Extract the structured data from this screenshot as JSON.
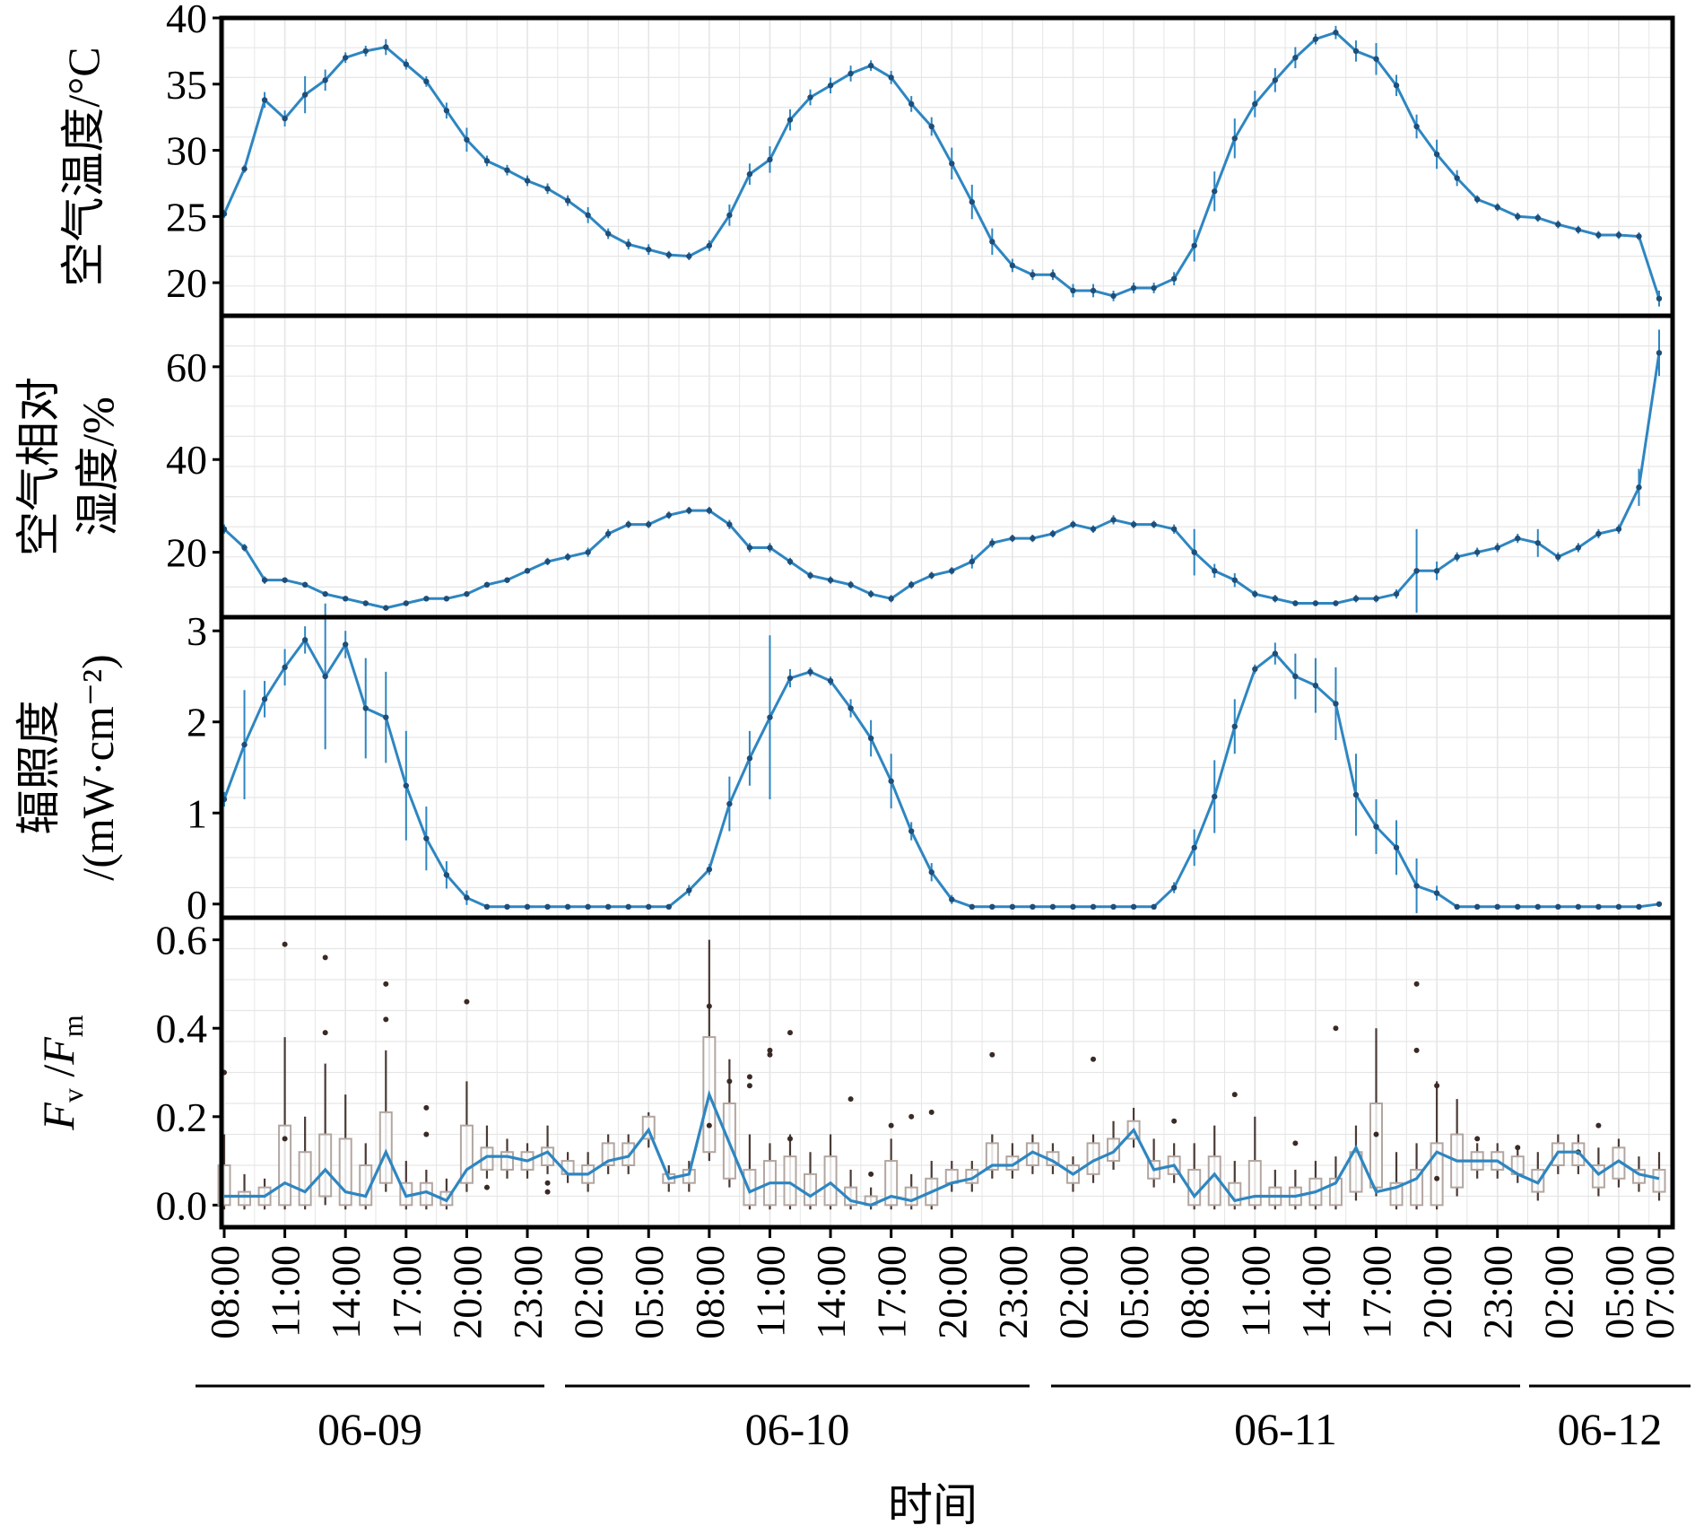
{
  "x_label": "时间",
  "day_groups": [
    "06-09",
    "06-10",
    "06-11",
    "06-12"
  ],
  "x_ticks": [
    "08:00",
    "11:00",
    "14:00",
    "17:00",
    "20:00",
    "23:00",
    "02:00",
    "05:00",
    "08:00",
    "11:00",
    "14:00",
    "17:00",
    "20:00",
    "23:00",
    "02:00",
    "05:00",
    "08:00",
    "11:00",
    "14:00",
    "17:00",
    "20:00",
    "23:00",
    "02:00",
    "05:00",
    "07:00"
  ],
  "colors": {
    "line": "#2e86c1",
    "box_edge": "#b3a6a0",
    "whisker": "#4a3a35",
    "grid": "#e6e6e6",
    "frame": "#000000"
  },
  "chart_data": [
    {
      "type": "line",
      "ylabel": [
        "空气温度/°C"
      ],
      "ylim": [
        17.5,
        40
      ],
      "yticks": [
        "20",
        "25",
        "30",
        "35",
        "40"
      ],
      "x_range_hours": [
        0,
        71
      ],
      "series": [
        {
          "values": [
            25.2,
            28.6,
            33.8,
            32.4,
            34.2,
            35.3,
            37.0,
            37.5,
            37.8,
            36.5,
            35.2,
            33.0,
            30.8,
            29.2,
            28.5,
            27.7,
            27.1,
            26.2,
            25.1,
            23.7,
            22.9,
            22.5,
            22.1,
            22.0,
            22.8,
            25.1,
            28.2,
            29.3,
            32.3,
            34.0,
            34.9,
            35.8,
            36.4,
            35.5,
            33.5,
            31.8,
            29.0,
            26.1,
            23.1,
            21.3,
            20.6,
            20.6,
            19.4,
            19.4,
            19.0,
            19.6,
            19.6,
            20.3,
            22.8,
            26.9,
            30.9,
            33.5,
            35.3,
            37.0,
            38.4,
            38.9,
            37.5,
            36.9,
            34.9,
            31.8,
            29.7,
            27.9,
            26.3,
            25.7,
            25.0,
            24.9,
            24.4,
            24.0,
            23.6,
            23.6,
            23.5,
            18.8
          ],
          "err": [
            0.3,
            0.3,
            0.6,
            0.6,
            1.4,
            0.8,
            0.4,
            0.4,
            0.6,
            0.4,
            0.4,
            0.6,
            0.9,
            0.4,
            0.4,
            0.4,
            0.4,
            0.4,
            0.6,
            0.4,
            0.4,
            0.4,
            0.3,
            0.3,
            0.4,
            0.8,
            0.8,
            1.0,
            0.8,
            0.6,
            0.6,
            0.6,
            0.4,
            0.5,
            0.6,
            0.7,
            1.2,
            1.3,
            1.0,
            0.5,
            0.4,
            0.4,
            0.5,
            0.5,
            0.4,
            0.4,
            0.4,
            0.5,
            1.2,
            1.5,
            1.5,
            1.0,
            0.9,
            0.8,
            0.4,
            0.5,
            0.8,
            1.2,
            0.8,
            0.9,
            1.1,
            0.6,
            0.3,
            0.3,
            0.3,
            0.3,
            0.3,
            0.3,
            0.3,
            0.3,
            0.3,
            0.6
          ]
        }
      ]
    },
    {
      "type": "line",
      "ylabel": [
        "空气相对",
        "湿度/%"
      ],
      "ylim": [
        6,
        71
      ],
      "yticks": [
        "20",
        "40",
        "60"
      ],
      "x_range_hours": [
        0,
        71
      ],
      "series": [
        {
          "values": [
            25.0,
            21.0,
            14.0,
            14.0,
            13.0,
            11.0,
            10.0,
            9.0,
            8.0,
            9.0,
            10.0,
            10.0,
            11.0,
            13.0,
            14.0,
            16.0,
            18.0,
            19.0,
            20.0,
            24.0,
            26.0,
            26.0,
            28.0,
            29.0,
            29.0,
            26.0,
            21.0,
            21.0,
            18.0,
            15.0,
            14.0,
            13.0,
            11.0,
            10.0,
            13.0,
            15.0,
            16.0,
            18.0,
            22.0,
            23.0,
            23.0,
            24.0,
            26.0,
            25.0,
            27.0,
            26.0,
            26.0,
            25.0,
            20.0,
            16.0,
            14.0,
            11.0,
            10.0,
            9.0,
            9.0,
            9.0,
            10.0,
            10.0,
            11.0,
            16.0,
            16.0,
            19.0,
            20.0,
            21.0,
            23.0,
            22.0,
            19.0,
            21.0,
            24.0,
            25.0,
            34.0,
            63.0
          ],
          "err": [
            1.0,
            0.8,
            0.8,
            0.6,
            0.6,
            0.5,
            0.5,
            0.5,
            0.6,
            0.5,
            0.5,
            0.5,
            0.6,
            0.6,
            0.6,
            0.6,
            0.8,
            0.8,
            1.0,
            1.0,
            0.8,
            0.8,
            0.8,
            0.8,
            0.8,
            1.0,
            1.0,
            1.0,
            0.8,
            0.8,
            0.8,
            0.8,
            0.8,
            0.8,
            0.8,
            0.8,
            0.8,
            1.5,
            1.0,
            0.8,
            0.8,
            0.8,
            0.8,
            0.8,
            1.0,
            0.8,
            0.8,
            1.0,
            5.0,
            1.5,
            1.5,
            0.8,
            0.8,
            0.6,
            0.6,
            0.6,
            0.8,
            0.8,
            1.0,
            9.0,
            2.0,
            1.0,
            1.0,
            1.0,
            1.0,
            3.0,
            1.0,
            1.0,
            1.0,
            1.0,
            4.0,
            5.0
          ]
        }
      ]
    },
    {
      "type": "line",
      "ylabel": [
        "辐照度",
        "/(mW·cm⁻²)"
      ],
      "ylim": [
        -0.15,
        3.15
      ],
      "yticks": [
        "0",
        "1",
        "2",
        "3"
      ],
      "x_range_hours": [
        0,
        71
      ],
      "series": [
        {
          "values": [
            1.15,
            1.75,
            2.25,
            2.6,
            2.9,
            2.5,
            2.85,
            2.15,
            2.05,
            1.3,
            0.72,
            0.32,
            0.07,
            -0.03,
            -0.03,
            -0.03,
            -0.03,
            -0.03,
            -0.03,
            -0.03,
            -0.03,
            -0.03,
            -0.03,
            0.15,
            0.38,
            1.1,
            1.6,
            2.05,
            2.48,
            2.55,
            2.45,
            2.15,
            1.82,
            1.35,
            0.8,
            0.35,
            0.05,
            -0.03,
            -0.03,
            -0.03,
            -0.03,
            -0.03,
            -0.03,
            -0.03,
            -0.03,
            -0.03,
            -0.03,
            0.18,
            0.62,
            1.18,
            1.95,
            2.58,
            2.75,
            2.5,
            2.4,
            2.2,
            1.2,
            0.85,
            0.62,
            0.2,
            0.12,
            -0.03,
            -0.03,
            -0.03,
            -0.03,
            -0.03,
            -0.03,
            -0.03,
            -0.03,
            -0.03,
            -0.03,
            0.0
          ],
          "err": [
            0.08,
            0.6,
            0.2,
            0.2,
            0.15,
            0.8,
            0.15,
            0.55,
            0.5,
            0.6,
            0.35,
            0.15,
            0.08,
            0.01,
            0.01,
            0.01,
            0.01,
            0.01,
            0.01,
            0.01,
            0.01,
            0.01,
            0.01,
            0.06,
            0.06,
            0.3,
            0.3,
            0.9,
            0.1,
            0.05,
            0.05,
            0.1,
            0.2,
            0.3,
            0.1,
            0.1,
            0.05,
            0.01,
            0.01,
            0.01,
            0.01,
            0.01,
            0.01,
            0.01,
            0.01,
            0.01,
            0.01,
            0.06,
            0.2,
            0.4,
            0.3,
            0.05,
            0.12,
            0.25,
            0.3,
            0.4,
            0.45,
            0.3,
            0.3,
            0.3,
            0.08,
            0.01,
            0.01,
            0.01,
            0.01,
            0.01,
            0.01,
            0.01,
            0.01,
            0.01,
            0.01,
            0.02
          ]
        }
      ]
    },
    {
      "type": "box",
      "ylabel_main": "F",
      "ylabel_sub1": "v",
      "ylabel_mid": " /",
      "ylabel_sub2": "m",
      "ylim": [
        -0.05,
        0.65
      ],
      "yticks": [
        "0.0",
        "0.2",
        "0.4",
        "0.6"
      ],
      "x_range_hours": [
        0,
        71
      ],
      "mean_line": [
        0.02,
        0.02,
        0.02,
        0.05,
        0.03,
        0.08,
        0.03,
        0.02,
        0.12,
        0.02,
        0.03,
        0.01,
        0.08,
        0.11,
        0.11,
        0.1,
        0.12,
        0.07,
        0.07,
        0.1,
        0.11,
        0.17,
        0.06,
        0.07,
        0.25,
        0.14,
        0.03,
        0.05,
        0.05,
        0.02,
        0.05,
        0.01,
        0.0,
        0.02,
        0.01,
        0.03,
        0.05,
        0.06,
        0.09,
        0.09,
        0.12,
        0.1,
        0.07,
        0.1,
        0.12,
        0.17,
        0.08,
        0.09,
        0.02,
        0.07,
        0.01,
        0.02,
        0.02,
        0.02,
        0.03,
        0.05,
        0.13,
        0.03,
        0.04,
        0.06,
        0.12,
        0.1,
        0.1,
        0.1,
        0.07,
        0.05,
        0.12,
        0.12,
        0.07,
        0.1,
        0.07,
        0.06
      ],
      "boxes": [
        [
          0,
          0.0,
          0.09,
          0.16
        ],
        [
          1,
          0.0,
          0.03,
          0.07
        ],
        [
          2,
          0.0,
          0.04,
          0.06
        ],
        [
          3,
          0.0,
          0.18,
          0.38
        ],
        [
          4,
          0.0,
          0.12,
          0.2
        ],
        [
          5,
          0.02,
          0.16,
          0.32
        ],
        [
          6,
          0.0,
          0.15,
          0.25
        ],
        [
          7,
          0.0,
          0.09,
          0.14
        ],
        [
          8,
          0.05,
          0.21,
          0.35
        ],
        [
          9,
          0.0,
          0.05,
          0.1
        ],
        [
          10,
          0.0,
          0.05,
          0.08
        ],
        [
          11,
          0.0,
          0.03,
          0.06
        ],
        [
          12,
          0.05,
          0.18,
          0.28
        ],
        [
          13,
          0.08,
          0.13,
          0.18
        ],
        [
          14,
          0.08,
          0.12,
          0.15
        ],
        [
          15,
          0.08,
          0.12,
          0.14
        ],
        [
          16,
          0.09,
          0.13,
          0.18
        ],
        [
          17,
          0.07,
          0.1,
          0.12
        ],
        [
          18,
          0.05,
          0.09,
          0.12
        ],
        [
          19,
          0.09,
          0.14,
          0.16
        ],
        [
          20,
          0.09,
          0.14,
          0.16
        ],
        [
          21,
          0.15,
          0.2,
          0.21
        ],
        [
          22,
          0.05,
          0.07,
          0.09
        ],
        [
          23,
          0.05,
          0.08,
          0.1
        ],
        [
          24,
          0.12,
          0.38,
          0.6
        ],
        [
          25,
          0.06,
          0.23,
          0.33
        ],
        [
          26,
          0.0,
          0.08,
          0.16
        ],
        [
          27,
          0.0,
          0.1,
          0.14
        ],
        [
          28,
          0.0,
          0.11,
          0.16
        ],
        [
          29,
          0.0,
          0.07,
          0.12
        ],
        [
          30,
          0.0,
          0.11,
          0.16
        ],
        [
          31,
          0.0,
          0.04,
          0.08
        ],
        [
          32,
          0.0,
          0.02,
          0.04
        ],
        [
          33,
          0.0,
          0.1,
          0.15
        ],
        [
          34,
          0.0,
          0.04,
          0.07
        ],
        [
          35,
          0.0,
          0.06,
          0.1
        ],
        [
          36,
          0.05,
          0.08,
          0.1
        ],
        [
          37,
          0.05,
          0.08,
          0.1
        ],
        [
          38,
          0.08,
          0.14,
          0.16
        ],
        [
          39,
          0.08,
          0.11,
          0.14
        ],
        [
          40,
          0.09,
          0.14,
          0.16
        ],
        [
          41,
          0.09,
          0.12,
          0.14
        ],
        [
          42,
          0.05,
          0.09,
          0.11
        ],
        [
          43,
          0.07,
          0.14,
          0.16
        ],
        [
          44,
          0.1,
          0.15,
          0.19
        ],
        [
          45,
          0.15,
          0.19,
          0.22
        ],
        [
          46,
          0.06,
          0.1,
          0.15
        ],
        [
          47,
          0.07,
          0.11,
          0.14
        ],
        [
          48,
          0.0,
          0.08,
          0.14
        ],
        [
          49,
          0.0,
          0.11,
          0.18
        ],
        [
          50,
          0.0,
          0.05,
          0.1
        ],
        [
          51,
          0.0,
          0.1,
          0.2
        ],
        [
          52,
          0.0,
          0.04,
          0.08
        ],
        [
          53,
          0.0,
          0.04,
          0.08
        ],
        [
          54,
          0.0,
          0.06,
          0.1
        ],
        [
          55,
          0.0,
          0.06,
          0.11
        ],
        [
          56,
          0.03,
          0.12,
          0.18
        ],
        [
          57,
          0.04,
          0.23,
          0.4
        ],
        [
          58,
          0.0,
          0.05,
          0.12
        ],
        [
          59,
          0.0,
          0.08,
          0.14
        ],
        [
          60,
          0.0,
          0.14,
          0.28
        ],
        [
          61,
          0.04,
          0.16,
          0.24
        ],
        [
          62,
          0.08,
          0.12,
          0.14
        ],
        [
          63,
          0.08,
          0.12,
          0.14
        ],
        [
          64,
          0.07,
          0.11,
          0.13
        ],
        [
          65,
          0.03,
          0.08,
          0.12
        ],
        [
          66,
          0.09,
          0.14,
          0.16
        ],
        [
          67,
          0.09,
          0.14,
          0.16
        ],
        [
          68,
          0.04,
          0.09,
          0.13
        ],
        [
          69,
          0.06,
          0.13,
          0.15
        ],
        [
          70,
          0.05,
          0.08,
          0.11
        ],
        [
          71,
          0.03,
          0.08,
          0.12
        ]
      ],
      "outliers": [
        [
          0,
          0.3
        ],
        [
          3,
          0.59
        ],
        [
          3,
          0.15
        ],
        [
          5,
          0.56
        ],
        [
          5,
          0.39
        ],
        [
          8,
          0.5
        ],
        [
          8,
          0.42
        ],
        [
          10,
          0.22
        ],
        [
          10,
          0.16
        ],
        [
          12,
          0.46
        ],
        [
          13,
          0.04
        ],
        [
          16,
          0.03
        ],
        [
          16,
          0.05
        ],
        [
          24,
          0.18
        ],
        [
          24,
          0.45
        ],
        [
          25,
          0.28
        ],
        [
          26,
          0.29
        ],
        [
          26,
          0.27
        ],
        [
          27,
          0.35
        ],
        [
          27,
          0.34
        ],
        [
          28,
          0.39
        ],
        [
          28,
          0.15
        ],
        [
          31,
          0.24
        ],
        [
          32,
          0.07
        ],
        [
          33,
          0.18
        ],
        [
          34,
          0.2
        ],
        [
          35,
          0.21
        ],
        [
          38,
          0.34
        ],
        [
          43,
          0.33
        ],
        [
          47,
          0.19
        ],
        [
          50,
          0.25
        ],
        [
          53,
          0.14
        ],
        [
          55,
          0.4
        ],
        [
          57,
          0.16
        ],
        [
          59,
          0.5
        ],
        [
          59,
          0.35
        ],
        [
          60,
          0.27
        ],
        [
          60,
          0.06
        ],
        [
          62,
          0.15
        ],
        [
          64,
          0.13
        ],
        [
          67,
          0.12
        ],
        [
          68,
          0.18
        ]
      ]
    }
  ]
}
